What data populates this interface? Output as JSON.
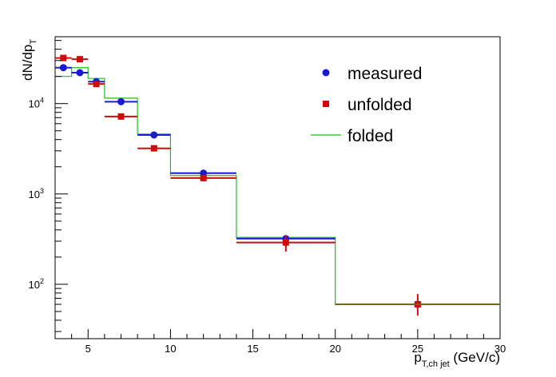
{
  "chart_data": {
    "type": "scatter",
    "title": "",
    "xlabel": {
      "main": "p",
      "sub": "T,ch jet",
      "unit": " (GeV/c)"
    },
    "ylabel": {
      "main": "dN/dp",
      "sub": "T"
    },
    "xlim": [
      3,
      30
    ],
    "ylim": [
      25,
      55000
    ],
    "yscale": "log",
    "x_ticks": [
      5,
      10,
      15,
      20,
      25,
      30
    ],
    "y_ticks": [
      {
        "value": 100,
        "base": "10",
        "exp": "2"
      },
      {
        "value": 1000,
        "base": "10",
        "exp": "3"
      },
      {
        "value": 10000,
        "base": "10",
        "exp": "4"
      }
    ],
    "grid": false,
    "legend": {
      "position": "top-right"
    },
    "series": [
      {
        "name": "measured",
        "color": "#1a1ad6",
        "marker": "circle",
        "points": [
          {
            "x": 3.5,
            "xlo": 3,
            "xhi": 4,
            "y": 25000
          },
          {
            "x": 4.5,
            "xlo": 4,
            "xhi": 5,
            "y": 22000
          },
          {
            "x": 5.5,
            "xlo": 5,
            "xhi": 6,
            "y": 17500
          },
          {
            "x": 7,
            "xlo": 6,
            "xhi": 8,
            "y": 10500
          },
          {
            "x": 9,
            "xlo": 8,
            "xhi": 10,
            "y": 4500
          },
          {
            "x": 12,
            "xlo": 10,
            "xhi": 14,
            "y": 1700
          },
          {
            "x": 17,
            "xlo": 14,
            "xhi": 20,
            "y": 320
          },
          {
            "x": 25,
            "xlo": 20,
            "xhi": 30,
            "y": 60
          }
        ]
      },
      {
        "name": "unfolded",
        "color": "#d10a0a",
        "marker": "square",
        "points": [
          {
            "x": 3.5,
            "xlo": 3,
            "xhi": 4,
            "y": 32000
          },
          {
            "x": 4.5,
            "xlo": 4,
            "xhi": 5,
            "y": 31000
          },
          {
            "x": 5.5,
            "xlo": 5,
            "xhi": 6,
            "y": 16500
          },
          {
            "x": 7,
            "xlo": 6,
            "xhi": 8,
            "y": 7200
          },
          {
            "x": 9,
            "xlo": 8,
            "xhi": 10,
            "y": 3200
          },
          {
            "x": 12,
            "xlo": 10,
            "xhi": 14,
            "y": 1500,
            "ylo": 1380,
            "yhi": 1620
          },
          {
            "x": 17,
            "xlo": 14,
            "xhi": 20,
            "y": 290,
            "ylo": 230,
            "yhi": 350
          },
          {
            "x": 25,
            "xlo": 20,
            "xhi": 30,
            "y": 60,
            "ylo": 45,
            "yhi": 78
          }
        ]
      },
      {
        "name": "folded",
        "color": "#22bb22",
        "marker": "line",
        "step": [
          {
            "xlo": 3,
            "xhi": 4,
            "y": 20000
          },
          {
            "xlo": 4,
            "xhi": 5,
            "y": 25000
          },
          {
            "xlo": 5,
            "xhi": 6,
            "y": 19000
          },
          {
            "xlo": 6,
            "xhi": 8,
            "y": 11500
          },
          {
            "xlo": 8,
            "xhi": 10,
            "y": 4600
          },
          {
            "xlo": 10,
            "xhi": 14,
            "y": 1600
          },
          {
            "xlo": 14,
            "xhi": 20,
            "y": 330
          },
          {
            "xlo": 20,
            "xhi": 30,
            "y": 60
          }
        ]
      }
    ]
  }
}
